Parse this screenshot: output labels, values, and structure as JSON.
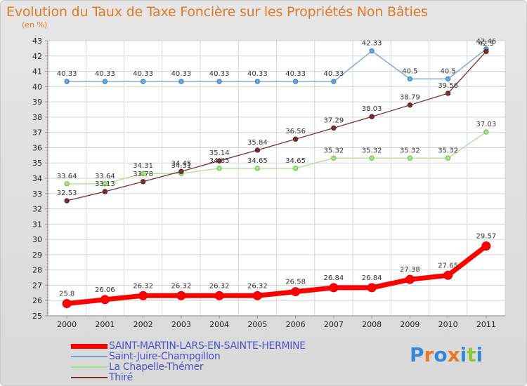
{
  "title": "Evolution du Taux de Taxe Foncière sur les Propriétés Non Bâties",
  "unit_label": "(en %)",
  "logo": {
    "letters": [
      "P",
      "r",
      "o",
      "x",
      "i",
      "t",
      "i"
    ],
    "colors": [
      "#3a86d6",
      "#e7792b",
      "#3a86d6",
      "#e7792b",
      "#3a86d6",
      "#8cc63f",
      "#3a86d6"
    ]
  },
  "chart_data": {
    "type": "line",
    "x": [
      "2000",
      "2001",
      "2002",
      "2003",
      "2004",
      "2005",
      "2006",
      "2007",
      "2008",
      "2009",
      "2010",
      "2011"
    ],
    "ylim": [
      25,
      43
    ],
    "yticks": [
      "25",
      "26",
      "27",
      "28",
      "29",
      "30",
      "31",
      "32",
      "33",
      "34",
      "35",
      "36",
      "37",
      "38",
      "39",
      "40",
      "41",
      "42",
      "43"
    ],
    "grid": true,
    "series": [
      {
        "name": "SAINT-MARTIN-LARS-EN-SAINTE-HERMINE",
        "color": "#ff0000",
        "values": [
          25.8,
          26.06,
          26.32,
          26.32,
          26.32,
          26.32,
          26.58,
          26.84,
          26.84,
          27.38,
          27.65,
          29.57
        ],
        "labels": [
          "25.8",
          "26.06",
          "26.32",
          "26.32",
          "26.32",
          "26.32",
          "26.58",
          "26.84",
          "26.84",
          "27.38",
          "27.65",
          "29.57"
        ]
      },
      {
        "name": "Saint-Juire-Champgillon",
        "color": "#6aa6da",
        "values": [
          40.33,
          40.33,
          40.33,
          40.33,
          40.33,
          40.33,
          40.33,
          40.33,
          42.33,
          40.5,
          40.5,
          42.46
        ],
        "labels": [
          "40.33",
          "40.33",
          "40.33",
          "40.33",
          "40.33",
          "40.33",
          "40.33",
          "40.33",
          "42.33",
          "40.5",
          "40.5",
          "42.46"
        ]
      },
      {
        "name": "La Chapelle-Thémer",
        "color": "#a6e08a",
        "values": [
          33.64,
          33.64,
          34.31,
          34.31,
          34.65,
          34.65,
          34.65,
          35.32,
          35.32,
          35.32,
          35.32,
          37.03
        ],
        "labels": [
          "33.64",
          "33.64",
          "34.31",
          "34.31",
          "34.65",
          "34.65",
          "34.65",
          "35.32",
          "35.32",
          "35.32",
          "35.32",
          "37.03"
        ]
      },
      {
        "name": "Thiré",
        "color": "#7a2f2f",
        "values": [
          32.53,
          33.13,
          33.78,
          34.45,
          35.14,
          35.84,
          36.56,
          37.29,
          38.03,
          38.79,
          39.56,
          42.3
        ],
        "labels": [
          "32.53",
          "33.13",
          "33.78",
          "34.45",
          "35.14",
          "35.84",
          "36.56",
          "37.29",
          "38.03",
          "38.79",
          "39.56",
          "42.3"
        ]
      }
    ]
  }
}
